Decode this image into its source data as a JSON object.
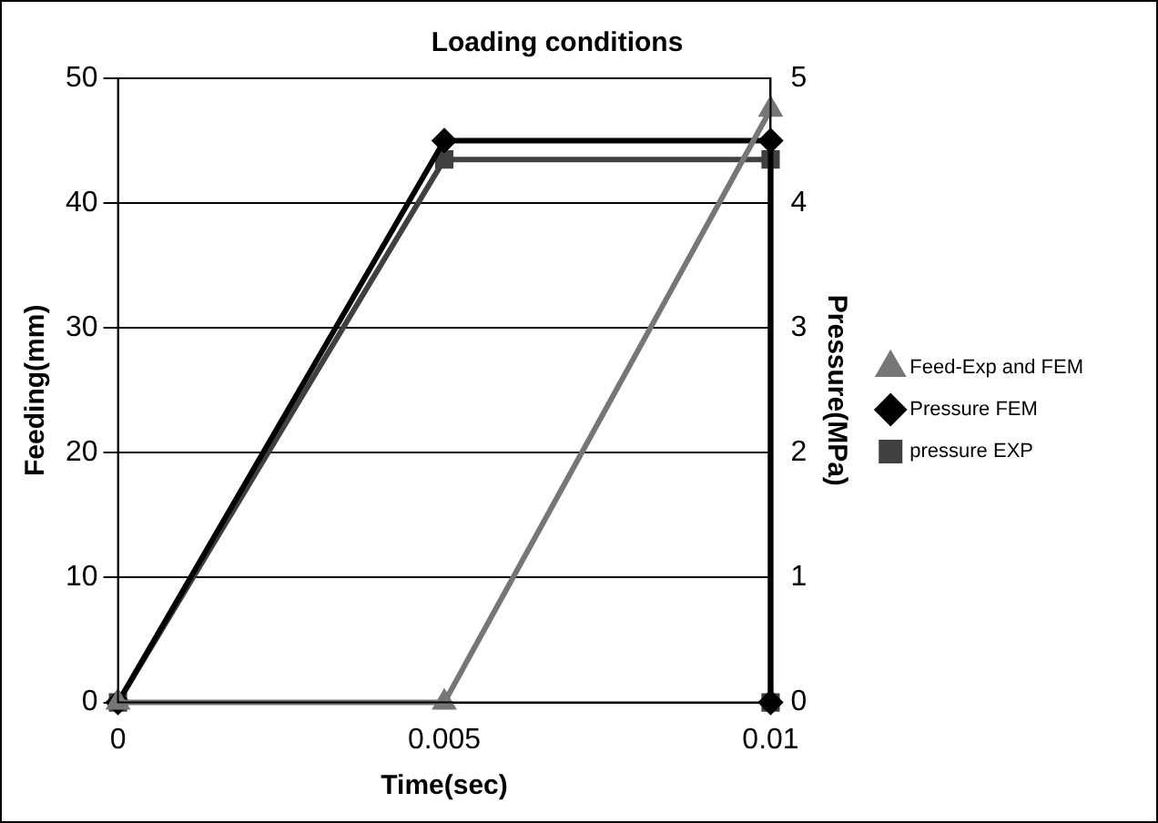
{
  "chart_data": {
    "type": "line",
    "title": "Loading conditions",
    "xlabel": "Time(sec)",
    "ylabel": "Feeding(mm)",
    "y2label": "Pressure(MPa)",
    "xlim": [
      0,
      0.01
    ],
    "xticks": [
      0,
      0.005,
      0.01
    ],
    "ylim": [
      0,
      50
    ],
    "yticks": [
      0,
      10,
      20,
      30,
      40,
      50
    ],
    "y2lim": [
      0,
      5
    ],
    "y2ticks": [
      0,
      1,
      2,
      3,
      4,
      5
    ],
    "grid": "y",
    "legend": "right",
    "series": [
      {
        "name": "Feed-Exp and FEM",
        "color": "#767676",
        "marker": "triangle",
        "x": [
          0,
          0.005,
          0.01
        ],
        "values": [
          0,
          0,
          47.5
        ]
      },
      {
        "name": "Pressure FEM",
        "color": "#000000",
        "marker": "diamond",
        "axis": "y2",
        "x": [
          0,
          0.005,
          0.01,
          0.01
        ],
        "values": [
          0,
          4.5,
          4.5,
          0
        ]
      },
      {
        "name": "pressure EXP",
        "color": "#404040",
        "marker": "square",
        "axis": "y2",
        "x": [
          0,
          0.005,
          0.01,
          0.01
        ],
        "values": [
          0,
          4.35,
          4.35,
          0
        ]
      }
    ]
  }
}
